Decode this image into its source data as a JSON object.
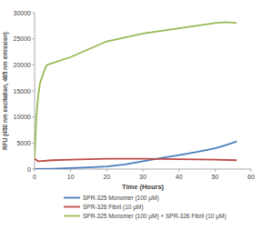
{
  "chart_data": {
    "type": "line",
    "x_label": "Time (Hours)",
    "y_label": "RFU (450 nm excitation, 485 nm emission)",
    "xlim": [
      0,
      60
    ],
    "xticks": [
      0,
      10,
      20,
      30,
      40,
      50,
      60
    ],
    "ylim": [
      0,
      30000
    ],
    "yticks": [
      0,
      5000,
      10000,
      15000,
      20000,
      25000,
      30000
    ],
    "grid": false,
    "legend": "bottom",
    "series": [
      {
        "name": "SPR-325 Monomer (100 µM)",
        "color": "#4a7ebb",
        "x": [
          0,
          5,
          10,
          15,
          20,
          25,
          30,
          35,
          40,
          45,
          50,
          53,
          56
        ],
        "values": [
          0,
          80,
          200,
          330,
          500,
          900,
          1500,
          2100,
          2700,
          3300,
          4000,
          4600,
          5300
        ]
      },
      {
        "name": "SPR-326 Fibril (10 µM)",
        "color": "#be4b48",
        "x": [
          0,
          1,
          5,
          10,
          20,
          30,
          40,
          50,
          56
        ],
        "values": [
          2000,
          1500,
          1700,
          1800,
          2000,
          2000,
          1900,
          1800,
          1700
        ]
      },
      {
        "name": "SPR-325 Monomer (100 µM) + SPR-326 Fibril (10 µM)",
        "color": "#98b954",
        "x": [
          0,
          0.5,
          1,
          1.5,
          2,
          2.5,
          3,
          3.5,
          10,
          20,
          30,
          40,
          50,
          53,
          56
        ],
        "values": [
          2000,
          10000,
          14000,
          16500,
          17500,
          18500,
          19500,
          20000,
          21500,
          24500,
          26000,
          27000,
          28000,
          28200,
          28000
        ]
      }
    ]
  }
}
